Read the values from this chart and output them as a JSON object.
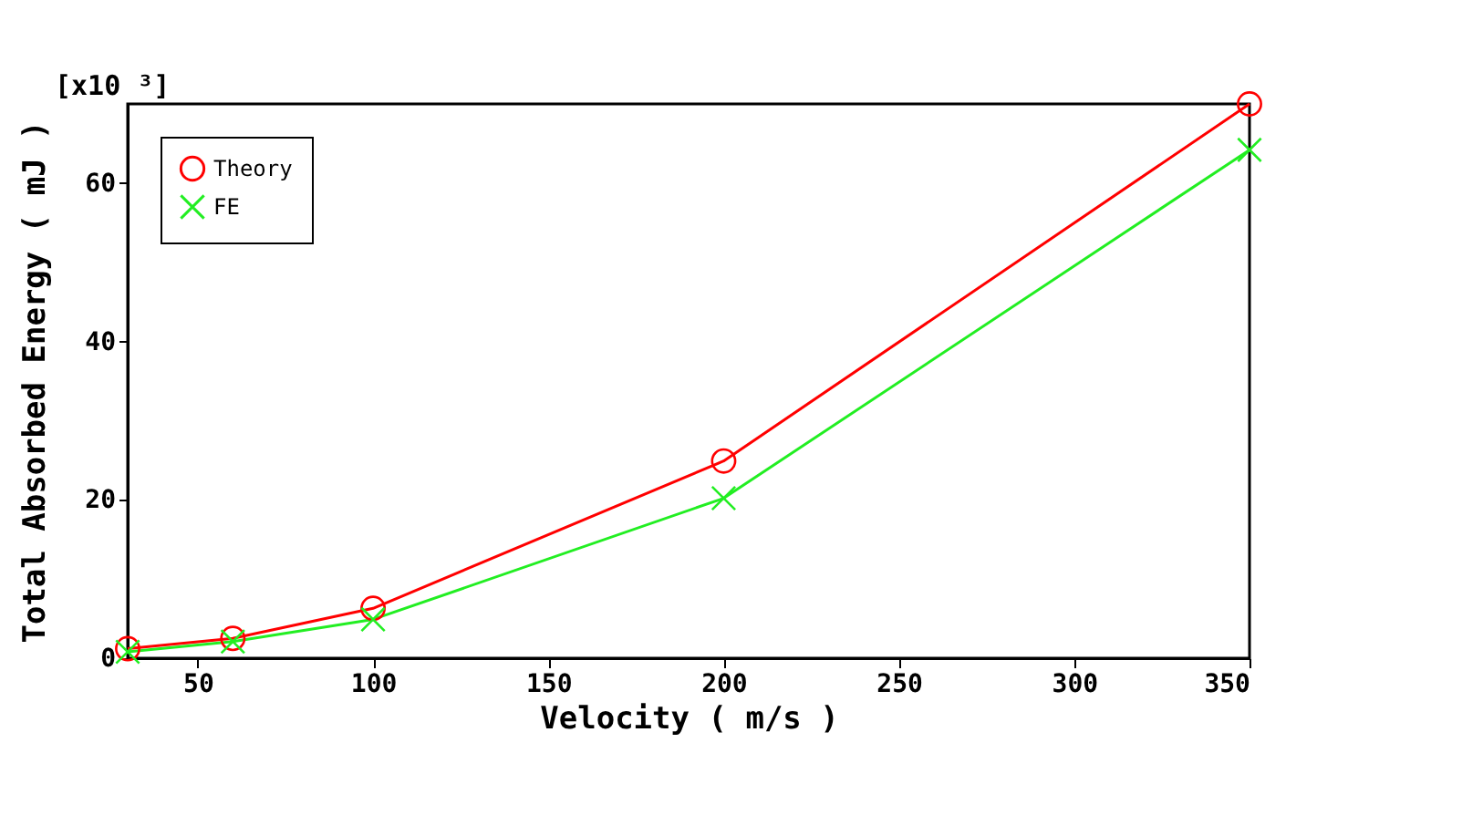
{
  "chart_data": {
    "type": "line",
    "xlabel": "Velocity ( m/s )",
    "ylabel": "Total Absorbed Energy ( mJ )",
    "annotations": [
      "[x10 ³]"
    ],
    "x": [
      30,
      60,
      100,
      200,
      350
    ],
    "series": [
      {
        "name": "Theory",
        "color": "#ff0000",
        "marker": "circle",
        "values": [
          1.2,
          2.5,
          6.3,
          24.9,
          70
        ]
      },
      {
        "name": "FE",
        "color": "#22ee22",
        "marker": "cross",
        "values": [
          0.8,
          2.1,
          4.9,
          20.2,
          64.2
        ]
      }
    ],
    "xlim": [
      30,
      350
    ],
    "xticks": [
      50,
      100,
      150,
      200,
      250,
      300,
      350
    ],
    "ylim": [
      0,
      70
    ],
    "yticks": [
      0,
      20,
      40,
      60
    ],
    "grid": false,
    "legend": "top left",
    "line_style": "solid"
  }
}
